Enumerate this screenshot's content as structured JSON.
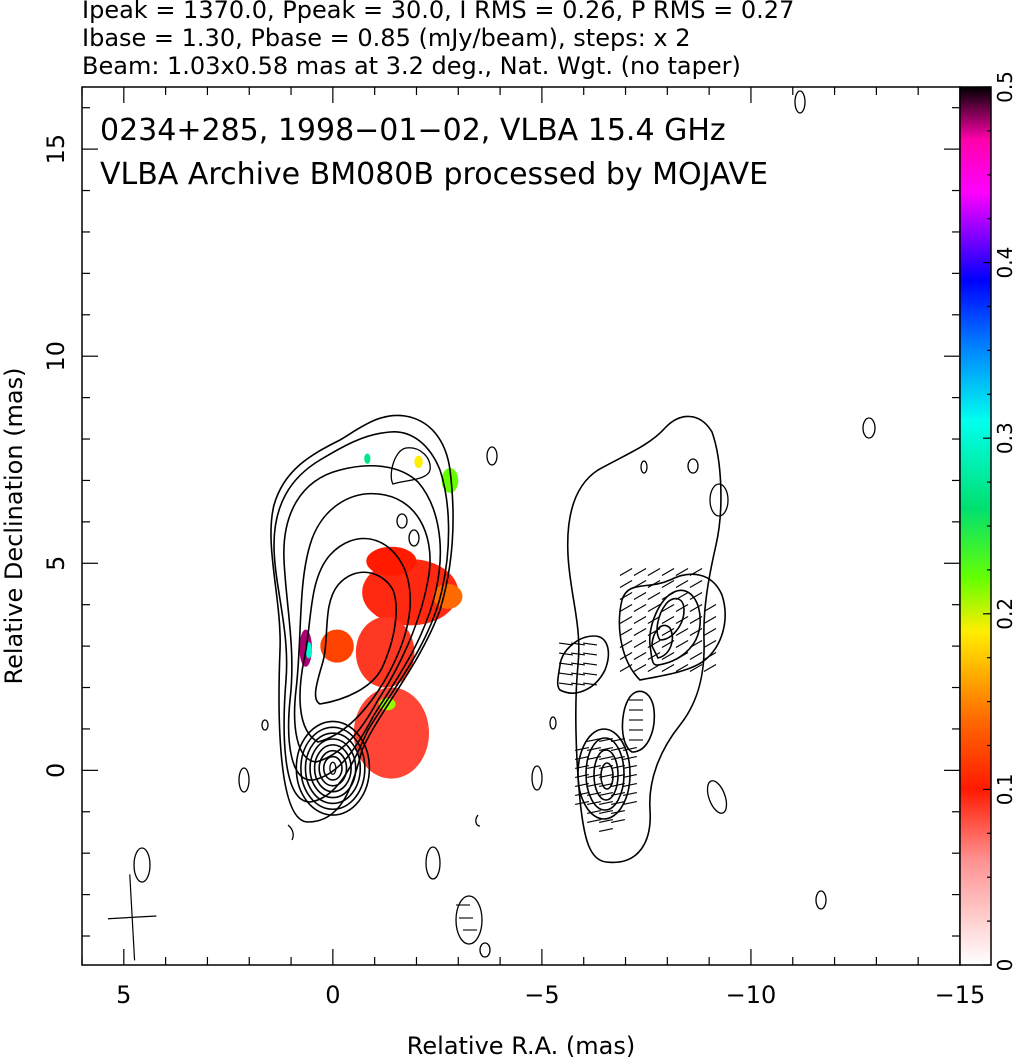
{
  "header": {
    "line1": "Ipeak = 1370.0, Ppeak = 30.0, I RMS = 0.26, P RMS = 0.27",
    "line2": "Ibase = 1.30, Pbase = 0.85 (mJy/beam), steps: x 2",
    "line3": "Beam: 1.03x0.58 mas at 3.2 deg., Nat. Wgt. (no taper)"
  },
  "plot_text": {
    "line1": "0234+285, 1998−01−02, VLBA 15.4 GHz",
    "line2": "VLBA Archive BM080B processed by MOJAVE"
  },
  "chart_data": {
    "type": "contour",
    "xlabel": "Relative R.A. (mas)",
    "ylabel": "Relative Declination (mas)",
    "xlim": [
      6,
      -15
    ],
    "ylim": [
      -4.7,
      16.5
    ],
    "x_ticks": [
      5,
      0,
      -5,
      -10,
      -15
    ],
    "x_tick_labels": [
      "5",
      "0",
      "−5",
      "−10",
      "−15"
    ],
    "y_ticks": [
      0,
      5,
      10,
      15
    ],
    "y_tick_labels": [
      "0",
      "5",
      "10",
      "15"
    ],
    "stats": {
      "ipeak_mjy_per_beam": 1370.0,
      "ppeak_mjy_per_beam": 30.0,
      "i_rms": 0.26,
      "p_rms": 0.27,
      "ibase": 1.3,
      "pbase": 0.85,
      "contour_step_factor": 2
    },
    "beam": {
      "major_mas": 1.03,
      "minor_mas": 0.58,
      "pa_deg": 3.2,
      "center": [
        4.8,
        -3.55
      ]
    },
    "colorbar": {
      "min": 0,
      "max": 0.5,
      "ticks": [
        0,
        0.1,
        0.2,
        0.3,
        0.4,
        0.5
      ],
      "tick_labels": [
        "0",
        "0.1",
        "0.2",
        "0.3",
        "0.4",
        "0.5"
      ],
      "colormap": [
        [
          0.0,
          "#ffffff"
        ],
        [
          0.06,
          "#ff9090"
        ],
        [
          0.1,
          "#ff1a00"
        ],
        [
          0.14,
          "#ff6a00"
        ],
        [
          0.19,
          "#ffee00"
        ],
        [
          0.22,
          "#66ff00"
        ],
        [
          0.26,
          "#00e070"
        ],
        [
          0.31,
          "#00ffee"
        ],
        [
          0.35,
          "#0088ff"
        ],
        [
          0.39,
          "#0000ff"
        ],
        [
          0.42,
          "#9900ff"
        ],
        [
          0.44,
          "#ff00ff"
        ],
        [
          0.47,
          "#ff00aa"
        ],
        [
          0.5,
          "#000000"
        ]
      ]
    },
    "panels": {
      "total_intensity_offset_mas": 0,
      "polarization_offset_mas": -7.0
    },
    "core_contour_radii_mas": [
      0.28,
      0.42,
      0.56,
      0.7,
      0.84,
      0.98,
      1.12
    ],
    "fractional_polarization_patches": [
      {
        "x": -0.7,
        "y": 3.5,
        "w": 2.3,
        "h": 1.6,
        "value": 0.095
      },
      {
        "x": -0.55,
        "y": 2.0,
        "w": 1.4,
        "h": 1.7,
        "value": 0.09
      },
      {
        "x": 0.3,
        "y": 2.6,
        "w": 0.8,
        "h": 0.8,
        "value": 0.12
      },
      {
        "x": -0.5,
        "y": -0.2,
        "w": 1.8,
        "h": 2.2,
        "value": 0.085
      },
      {
        "x": -0.8,
        "y": 4.7,
        "w": 1.2,
        "h": 0.7,
        "value": 0.1
      },
      {
        "x": -2.4,
        "y": 3.9,
        "w": 0.7,
        "h": 0.6,
        "value": 0.14
      },
      {
        "x": -2.6,
        "y": 6.7,
        "w": 0.4,
        "h": 0.6,
        "value": 0.22
      },
      {
        "x": -1.95,
        "y": 7.3,
        "w": 0.2,
        "h": 0.3,
        "value": 0.19
      },
      {
        "x": -0.75,
        "y": 7.4,
        "w": 0.15,
        "h": 0.25,
        "value": 0.27
      },
      {
        "x": 0.8,
        "y": 2.5,
        "w": 0.3,
        "h": 0.9,
        "value": 0.48
      },
      {
        "x": 0.65,
        "y": 2.7,
        "w": 0.15,
        "h": 0.4,
        "value": 0.3
      },
      {
        "x": -1.1,
        "y": 1.45,
        "w": 0.4,
        "h": 0.3,
        "value": 0.21
      }
    ]
  }
}
